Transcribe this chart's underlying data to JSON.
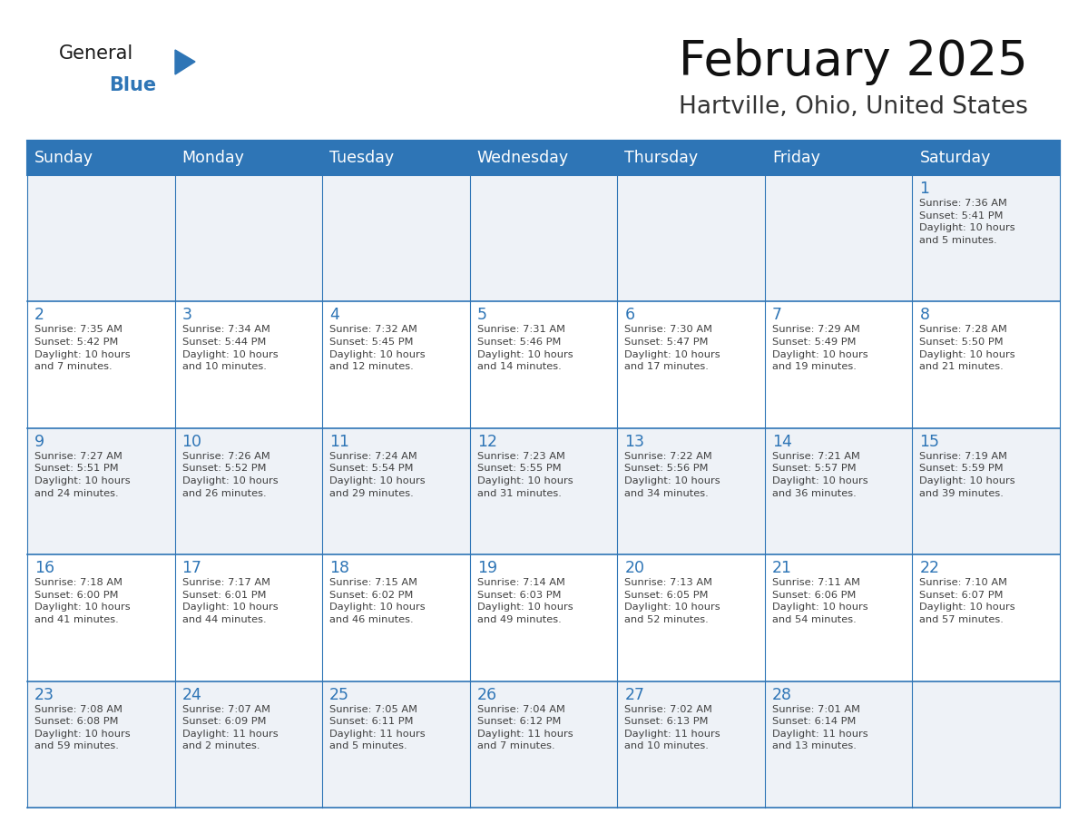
{
  "title": "February 2025",
  "subtitle": "Hartville, Ohio, United States",
  "header_bg": "#2E75B6",
  "header_text_color": "#FFFFFF",
  "day_names": [
    "Sunday",
    "Monday",
    "Tuesday",
    "Wednesday",
    "Thursday",
    "Friday",
    "Saturday"
  ],
  "cell_bg_odd": "#FFFFFF",
  "cell_bg_even": "#EEF2F7",
  "border_color": "#2E75B6",
  "day_number_color": "#2E75B6",
  "text_color": "#404040",
  "logo_general_color": "#1a1a1a",
  "logo_blue_color": "#2E75B6",
  "title_color": "#111111",
  "subtitle_color": "#333333",
  "weeks": [
    [
      {
        "day": null,
        "info": null
      },
      {
        "day": null,
        "info": null
      },
      {
        "day": null,
        "info": null
      },
      {
        "day": null,
        "info": null
      },
      {
        "day": null,
        "info": null
      },
      {
        "day": null,
        "info": null
      },
      {
        "day": 1,
        "info": "Sunrise: 7:36 AM\nSunset: 5:41 PM\nDaylight: 10 hours\nand 5 minutes."
      }
    ],
    [
      {
        "day": 2,
        "info": "Sunrise: 7:35 AM\nSunset: 5:42 PM\nDaylight: 10 hours\nand 7 minutes."
      },
      {
        "day": 3,
        "info": "Sunrise: 7:34 AM\nSunset: 5:44 PM\nDaylight: 10 hours\nand 10 minutes."
      },
      {
        "day": 4,
        "info": "Sunrise: 7:32 AM\nSunset: 5:45 PM\nDaylight: 10 hours\nand 12 minutes."
      },
      {
        "day": 5,
        "info": "Sunrise: 7:31 AM\nSunset: 5:46 PM\nDaylight: 10 hours\nand 14 minutes."
      },
      {
        "day": 6,
        "info": "Sunrise: 7:30 AM\nSunset: 5:47 PM\nDaylight: 10 hours\nand 17 minutes."
      },
      {
        "day": 7,
        "info": "Sunrise: 7:29 AM\nSunset: 5:49 PM\nDaylight: 10 hours\nand 19 minutes."
      },
      {
        "day": 8,
        "info": "Sunrise: 7:28 AM\nSunset: 5:50 PM\nDaylight: 10 hours\nand 21 minutes."
      }
    ],
    [
      {
        "day": 9,
        "info": "Sunrise: 7:27 AM\nSunset: 5:51 PM\nDaylight: 10 hours\nand 24 minutes."
      },
      {
        "day": 10,
        "info": "Sunrise: 7:26 AM\nSunset: 5:52 PM\nDaylight: 10 hours\nand 26 minutes."
      },
      {
        "day": 11,
        "info": "Sunrise: 7:24 AM\nSunset: 5:54 PM\nDaylight: 10 hours\nand 29 minutes."
      },
      {
        "day": 12,
        "info": "Sunrise: 7:23 AM\nSunset: 5:55 PM\nDaylight: 10 hours\nand 31 minutes."
      },
      {
        "day": 13,
        "info": "Sunrise: 7:22 AM\nSunset: 5:56 PM\nDaylight: 10 hours\nand 34 minutes."
      },
      {
        "day": 14,
        "info": "Sunrise: 7:21 AM\nSunset: 5:57 PM\nDaylight: 10 hours\nand 36 minutes."
      },
      {
        "day": 15,
        "info": "Sunrise: 7:19 AM\nSunset: 5:59 PM\nDaylight: 10 hours\nand 39 minutes."
      }
    ],
    [
      {
        "day": 16,
        "info": "Sunrise: 7:18 AM\nSunset: 6:00 PM\nDaylight: 10 hours\nand 41 minutes."
      },
      {
        "day": 17,
        "info": "Sunrise: 7:17 AM\nSunset: 6:01 PM\nDaylight: 10 hours\nand 44 minutes."
      },
      {
        "day": 18,
        "info": "Sunrise: 7:15 AM\nSunset: 6:02 PM\nDaylight: 10 hours\nand 46 minutes."
      },
      {
        "day": 19,
        "info": "Sunrise: 7:14 AM\nSunset: 6:03 PM\nDaylight: 10 hours\nand 49 minutes."
      },
      {
        "day": 20,
        "info": "Sunrise: 7:13 AM\nSunset: 6:05 PM\nDaylight: 10 hours\nand 52 minutes."
      },
      {
        "day": 21,
        "info": "Sunrise: 7:11 AM\nSunset: 6:06 PM\nDaylight: 10 hours\nand 54 minutes."
      },
      {
        "day": 22,
        "info": "Sunrise: 7:10 AM\nSunset: 6:07 PM\nDaylight: 10 hours\nand 57 minutes."
      }
    ],
    [
      {
        "day": 23,
        "info": "Sunrise: 7:08 AM\nSunset: 6:08 PM\nDaylight: 10 hours\nand 59 minutes."
      },
      {
        "day": 24,
        "info": "Sunrise: 7:07 AM\nSunset: 6:09 PM\nDaylight: 11 hours\nand 2 minutes."
      },
      {
        "day": 25,
        "info": "Sunrise: 7:05 AM\nSunset: 6:11 PM\nDaylight: 11 hours\nand 5 minutes."
      },
      {
        "day": 26,
        "info": "Sunrise: 7:04 AM\nSunset: 6:12 PM\nDaylight: 11 hours\nand 7 minutes."
      },
      {
        "day": 27,
        "info": "Sunrise: 7:02 AM\nSunset: 6:13 PM\nDaylight: 11 hours\nand 10 minutes."
      },
      {
        "day": 28,
        "info": "Sunrise: 7:01 AM\nSunset: 6:14 PM\nDaylight: 11 hours\nand 13 minutes."
      },
      {
        "day": null,
        "info": null
      }
    ]
  ]
}
